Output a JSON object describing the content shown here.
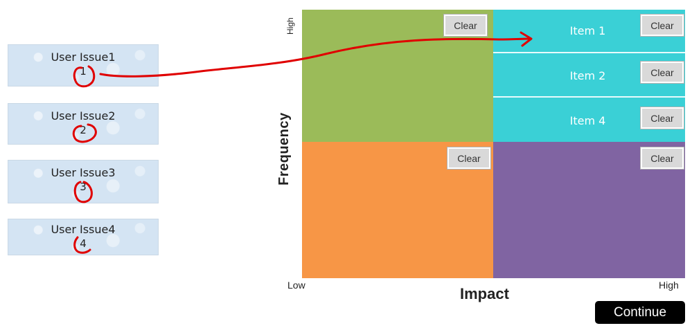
{
  "issues": [
    {
      "title": "User Issue1",
      "number": "1"
    },
    {
      "title": "User Issue2",
      "number": "2"
    },
    {
      "title": "User Issue3",
      "number": "3"
    },
    {
      "title": "User Issue4",
      "number": "4"
    }
  ],
  "matrix": {
    "y_axis": {
      "title": "Frequency",
      "high": "High"
    },
    "x_axis": {
      "title": "Impact",
      "low": "Low",
      "high": "High"
    },
    "clear_label": "Clear",
    "high_high_items": [
      "Item 1",
      "Item 2",
      "Item 4"
    ],
    "colors": {
      "low_impact_high_freq": "#9bbb59",
      "high_impact_high_freq": "#3ad0d6",
      "low_impact_low_freq": "#f79646",
      "high_impact_low_freq": "#8064a2"
    }
  },
  "continue_label": "Continue",
  "annotation_color": "#e00000"
}
